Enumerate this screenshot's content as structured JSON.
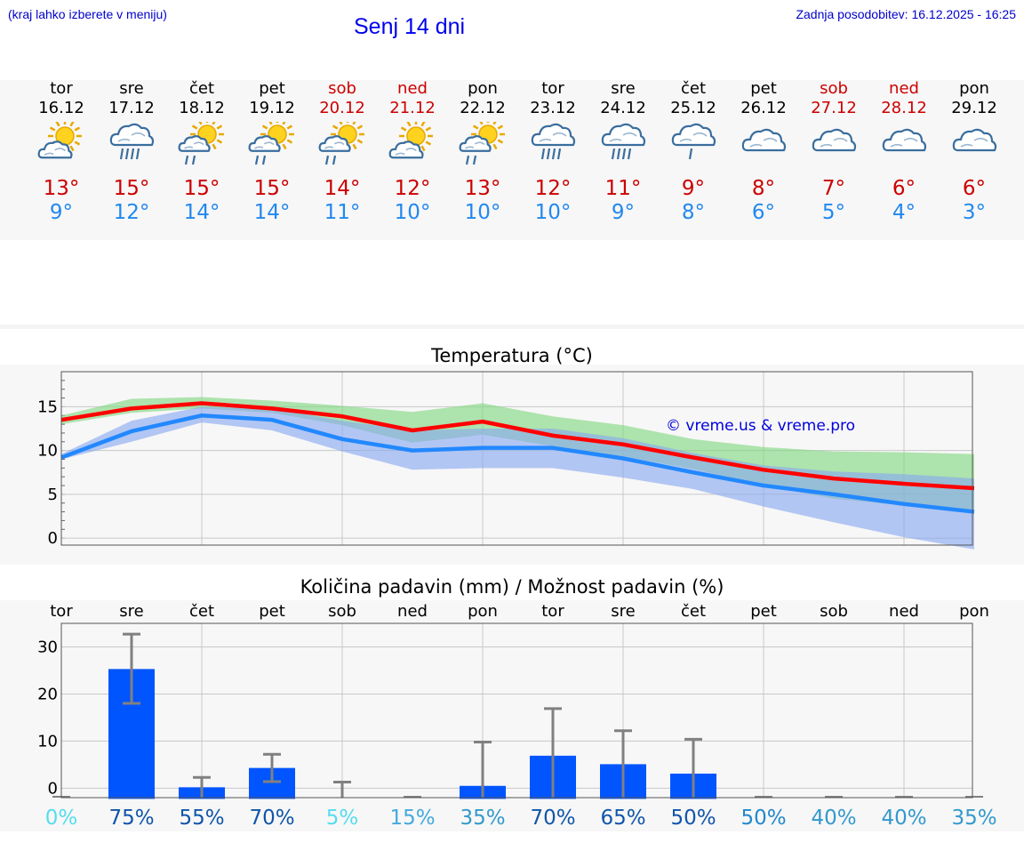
{
  "header": {
    "hint": "(kraj lahko izberete v meniju)",
    "title": "Senj 14 dni",
    "updated": "Zadnja posodobitev: 16.12.2025 - 16:25"
  },
  "days": [
    {
      "name": "tor",
      "date": "16.12",
      "weekend": false,
      "icon": "sun-cloud-icon",
      "tmax": "13°",
      "tmin": "9°"
    },
    {
      "name": "sre",
      "date": "17.12",
      "weekend": false,
      "icon": "cloud-heavy-rain-icon",
      "tmax": "15°",
      "tmin": "12°"
    },
    {
      "name": "čet",
      "date": "18.12",
      "weekend": false,
      "icon": "sun-cloud-rain-icon",
      "tmax": "15°",
      "tmin": "14°"
    },
    {
      "name": "pet",
      "date": "19.12",
      "weekend": false,
      "icon": "sun-cloud-rain-icon",
      "tmax": "15°",
      "tmin": "14°"
    },
    {
      "name": "sob",
      "date": "20.12",
      "weekend": true,
      "icon": "sun-cloud-rain-icon",
      "tmax": "14°",
      "tmin": "11°"
    },
    {
      "name": "ned",
      "date": "21.12",
      "weekend": true,
      "icon": "sun-cloud-icon",
      "tmax": "12°",
      "tmin": "10°"
    },
    {
      "name": "pon",
      "date": "22.12",
      "weekend": false,
      "icon": "sun-cloud-rain-icon",
      "tmax": "13°",
      "tmin": "10°"
    },
    {
      "name": "tor",
      "date": "23.12",
      "weekend": false,
      "icon": "cloud-heavy-rain-icon",
      "tmax": "12°",
      "tmin": "10°"
    },
    {
      "name": "sre",
      "date": "24.12",
      "weekend": false,
      "icon": "cloud-heavy-rain-icon",
      "tmax": "11°",
      "tmin": "9°"
    },
    {
      "name": "čet",
      "date": "25.12",
      "weekend": false,
      "icon": "cloud-rain-icon",
      "tmax": "9°",
      "tmin": "8°"
    },
    {
      "name": "pet",
      "date": "26.12",
      "weekend": false,
      "icon": "cloud-icon",
      "tmax": "8°",
      "tmin": "6°"
    },
    {
      "name": "sob",
      "date": "27.12",
      "weekend": true,
      "icon": "cloud-icon",
      "tmax": "7°",
      "tmin": "5°"
    },
    {
      "name": "ned",
      "date": "28.12",
      "weekend": true,
      "icon": "cloud-icon",
      "tmax": "6°",
      "tmin": "4°"
    },
    {
      "name": "pon",
      "date": "29.12",
      "weekend": false,
      "icon": "cloud-icon",
      "tmax": "6°",
      "tmin": "3°"
    }
  ],
  "colors": {
    "max_line": "#ff0000",
    "min_line": "#2288ff",
    "max_band": "#7fd67f",
    "min_band": "#88a8f0",
    "bar": "#0055ff",
    "errbar": "#808080",
    "weekend": "#cc0000",
    "tmin_text": "#2288ee",
    "wm": "#0000dd"
  },
  "chart_data": [
    {
      "type": "line",
      "title": "Temperatura (°C)",
      "watermark": "© vreme.us & vreme.pro",
      "ylim": [
        -0.8,
        19
      ],
      "yticks": [
        0,
        5,
        10,
        15
      ],
      "grid": true,
      "x": [
        0,
        1,
        2,
        3,
        4,
        5,
        6,
        7,
        8,
        9,
        10,
        11,
        12,
        13
      ],
      "series": [
        {
          "name": "max",
          "values": [
            13.5,
            14.8,
            15.4,
            14.8,
            13.9,
            12.3,
            13.3,
            11.7,
            10.7,
            9.2,
            7.8,
            6.8,
            6.2,
            5.7
          ]
        },
        {
          "name": "min",
          "values": [
            9.2,
            12.2,
            14.0,
            13.5,
            11.3,
            10.0,
            10.3,
            10.3,
            9.1,
            7.5,
            6.0,
            5.0,
            3.9,
            3.0
          ]
        }
      ],
      "bands": [
        {
          "name": "max_range",
          "low": [
            13.0,
            14.3,
            14.8,
            14.3,
            12.9,
            10.9,
            11.8,
            10.5,
            9.3,
            7.9,
            6.0,
            4.5,
            3.7,
            2.8
          ],
          "high": [
            14.0,
            15.9,
            16.1,
            15.7,
            15.1,
            14.4,
            15.4,
            13.9,
            12.9,
            11.3,
            10.4,
            9.9,
            9.8,
            9.6
          ]
        },
        {
          "name": "min_range",
          "low": [
            9.0,
            11.0,
            13.2,
            12.3,
            9.9,
            7.8,
            8.0,
            8.0,
            6.9,
            5.6,
            3.6,
            1.8,
            0.1,
            -1.3
          ],
          "high": [
            9.6,
            13.4,
            15.0,
            14.8,
            13.4,
            12.3,
            12.5,
            12.5,
            11.4,
            9.7,
            8.3,
            7.6,
            7.3,
            6.8
          ]
        }
      ]
    },
    {
      "type": "bar",
      "title": "Količina padavin (mm) / Možnost padavin (%)",
      "ylim": [
        -2,
        35
      ],
      "yticks": [
        0,
        10,
        20,
        30
      ],
      "grid": true,
      "categories": [
        "tor",
        "sre",
        "čet",
        "pet",
        "sob",
        "ned",
        "pon",
        "tor",
        "sre",
        "čet",
        "pet",
        "sob",
        "ned",
        "pon"
      ],
      "values": [
        0,
        25.3,
        0.2,
        4.3,
        0,
        0,
        0.5,
        6.9,
        5.1,
        3.1,
        0,
        0,
        0,
        0
      ],
      "error_low": [
        0,
        18.0,
        0,
        1.4,
        0,
        0,
        0,
        0,
        0,
        0,
        0,
        0,
        0,
        0
      ],
      "error_high": [
        0,
        32.7,
        2.3,
        7.2,
        1.3,
        0,
        9.8,
        16.9,
        12.2,
        10.4,
        0,
        0,
        0,
        0
      ],
      "probability": [
        "0%",
        "75%",
        "55%",
        "70%",
        "5%",
        "15%",
        "35%",
        "70%",
        "65%",
        "50%",
        "50%",
        "40%",
        "40%",
        "35%"
      ],
      "probability_colors": [
        "#55ddee",
        "#1155aa",
        "#1155aa",
        "#1155aa",
        "#55ddee",
        "#44aadd",
        "#3399cc",
        "#1155aa",
        "#1155aa",
        "#1155aa",
        "#2288cc",
        "#3399cc",
        "#3399cc",
        "#3399cc"
      ]
    }
  ]
}
